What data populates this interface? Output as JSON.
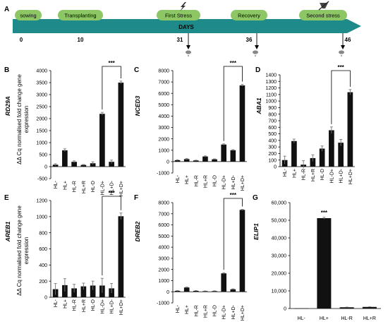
{
  "timeline": {
    "panel_letter": "A",
    "axis_label": "DAYS",
    "stages": [
      {
        "label": "sowing",
        "day": "0"
      },
      {
        "label": "Transplanting",
        "day": "10"
      },
      {
        "label": "First Stress",
        "day": "31"
      },
      {
        "label": "Recovery",
        "day": "36"
      },
      {
        "label": "Second stress",
        "day": "46"
      }
    ],
    "sample_markers": [
      "31",
      "36",
      "46"
    ]
  },
  "y_axis_title": [
    "ΔΔ Cq normalised fold change gene",
    "expression"
  ],
  "significance_label": "***",
  "chart_data": [
    {
      "panel": "B",
      "type": "bar",
      "gene": "RD29A",
      "categories": [
        "HL-",
        "HL+",
        "HL-R",
        "HL+R",
        "HL-D",
        "HL-D+",
        "HL+D-",
        "HL+D+"
      ],
      "values": [
        80,
        680,
        200,
        70,
        140,
        2200,
        200,
        3500
      ],
      "errors": [
        40,
        60,
        40,
        20,
        60,
        60,
        70,
        60
      ],
      "ylim": [
        -500,
        4000
      ],
      "yticks": [
        "-500",
        "0",
        "500",
        "1000",
        "1500",
        "2000",
        "2500",
        "3000",
        "3500",
        "4000"
      ],
      "significance": {
        "from": "HL-D+",
        "to": "HL+D+",
        "label": "***"
      }
    },
    {
      "panel": "C",
      "type": "bar",
      "gene": "NCED3",
      "categories": [
        "HL-",
        "HL+",
        "HL-R",
        "HL+R",
        "HL-D",
        "HL-D+",
        "HL+D-",
        "HL+D+"
      ],
      "values": [
        120,
        220,
        100,
        450,
        200,
        1500,
        1000,
        6700
      ],
      "errors": [
        40,
        60,
        20,
        50,
        40,
        60,
        50,
        80
      ],
      "ylim": [
        -1000,
        8000
      ],
      "yticks": [
        "-1000",
        "0",
        "1000",
        "2000",
        "3000",
        "4000",
        "5000",
        "6000",
        "7000",
        "8000"
      ],
      "significance": {
        "from": "HL-D+",
        "to": "HL+D+",
        "label": "***"
      }
    },
    {
      "panel": "D",
      "type": "bar",
      "gene": "ABA1",
      "categories": [
        "HL-",
        "HL+",
        "HL-R",
        "HL+R",
        "HL-D",
        "HL-D+",
        "HL+D-",
        "HL+D+"
      ],
      "values": [
        100,
        390,
        30,
        130,
        275,
        555,
        365,
        1135
      ],
      "errors": [
        60,
        30,
        60,
        50,
        40,
        50,
        50,
        40
      ],
      "ylim": [
        0,
        1400
      ],
      "yticks": [
        "0",
        "100",
        "200",
        "300",
        "400",
        "500",
        "600",
        "700",
        "800",
        "900",
        "1000",
        "1100",
        "1200",
        "1300",
        "1400"
      ],
      "significance": {
        "from": "HL-D+",
        "to": "HL+D+",
        "label": "***"
      }
    },
    {
      "panel": "E",
      "type": "bar",
      "gene": "AREB1",
      "categories": [
        "HL-",
        "HL+",
        "HL-R",
        "HL+R",
        "HL-D",
        "HL-D+",
        "HL+D-",
        "HL+D+"
      ],
      "values": [
        100,
        150,
        110,
        135,
        145,
        145,
        110,
        1005
      ],
      "errors": [
        70,
        80,
        50,
        40,
        55,
        90,
        60,
        40
      ],
      "ylim": [
        0,
        1200
      ],
      "yticks": [
        "0",
        "200",
        "400",
        "600",
        "800",
        "1000",
        "1200"
      ],
      "significance": {
        "from": "HL-D+",
        "to": "HL+D+",
        "label": "***"
      }
    },
    {
      "panel": "F",
      "type": "bar",
      "gene": "DREB2",
      "categories": [
        "HL-",
        "HL+",
        "HL-R",
        "HL+R",
        "HL-D",
        "HL-D+",
        "HL+D-",
        "HL+D+"
      ],
      "values": [
        80,
        380,
        80,
        50,
        60,
        1650,
        220,
        7350
      ],
      "errors": [
        20,
        40,
        20,
        20,
        20,
        60,
        40,
        50
      ],
      "ylim": [
        -1000,
        8000
      ],
      "yticks": [
        "-1000",
        "0",
        "1000",
        "2000",
        "3000",
        "4000",
        "5000",
        "6000",
        "7000",
        "8000"
      ],
      "significance": {
        "from": "HL-D+",
        "to": "HL+D+",
        "label": "***"
      }
    },
    {
      "panel": "G",
      "type": "bar",
      "gene": "ELIP1",
      "categories": [
        "HL-",
        "HL+",
        "HL-R",
        "HL+R"
      ],
      "values": [
        100,
        51200,
        700,
        900
      ],
      "errors": [
        50,
        500,
        100,
        100
      ],
      "ylim": [
        0,
        60000
      ],
      "yticks": [
        "0",
        "10,000",
        "20,000",
        "30,000",
        "40,000",
        "50,000",
        "60,000"
      ],
      "significance": {
        "at": "HL+",
        "label": "***"
      }
    }
  ]
}
